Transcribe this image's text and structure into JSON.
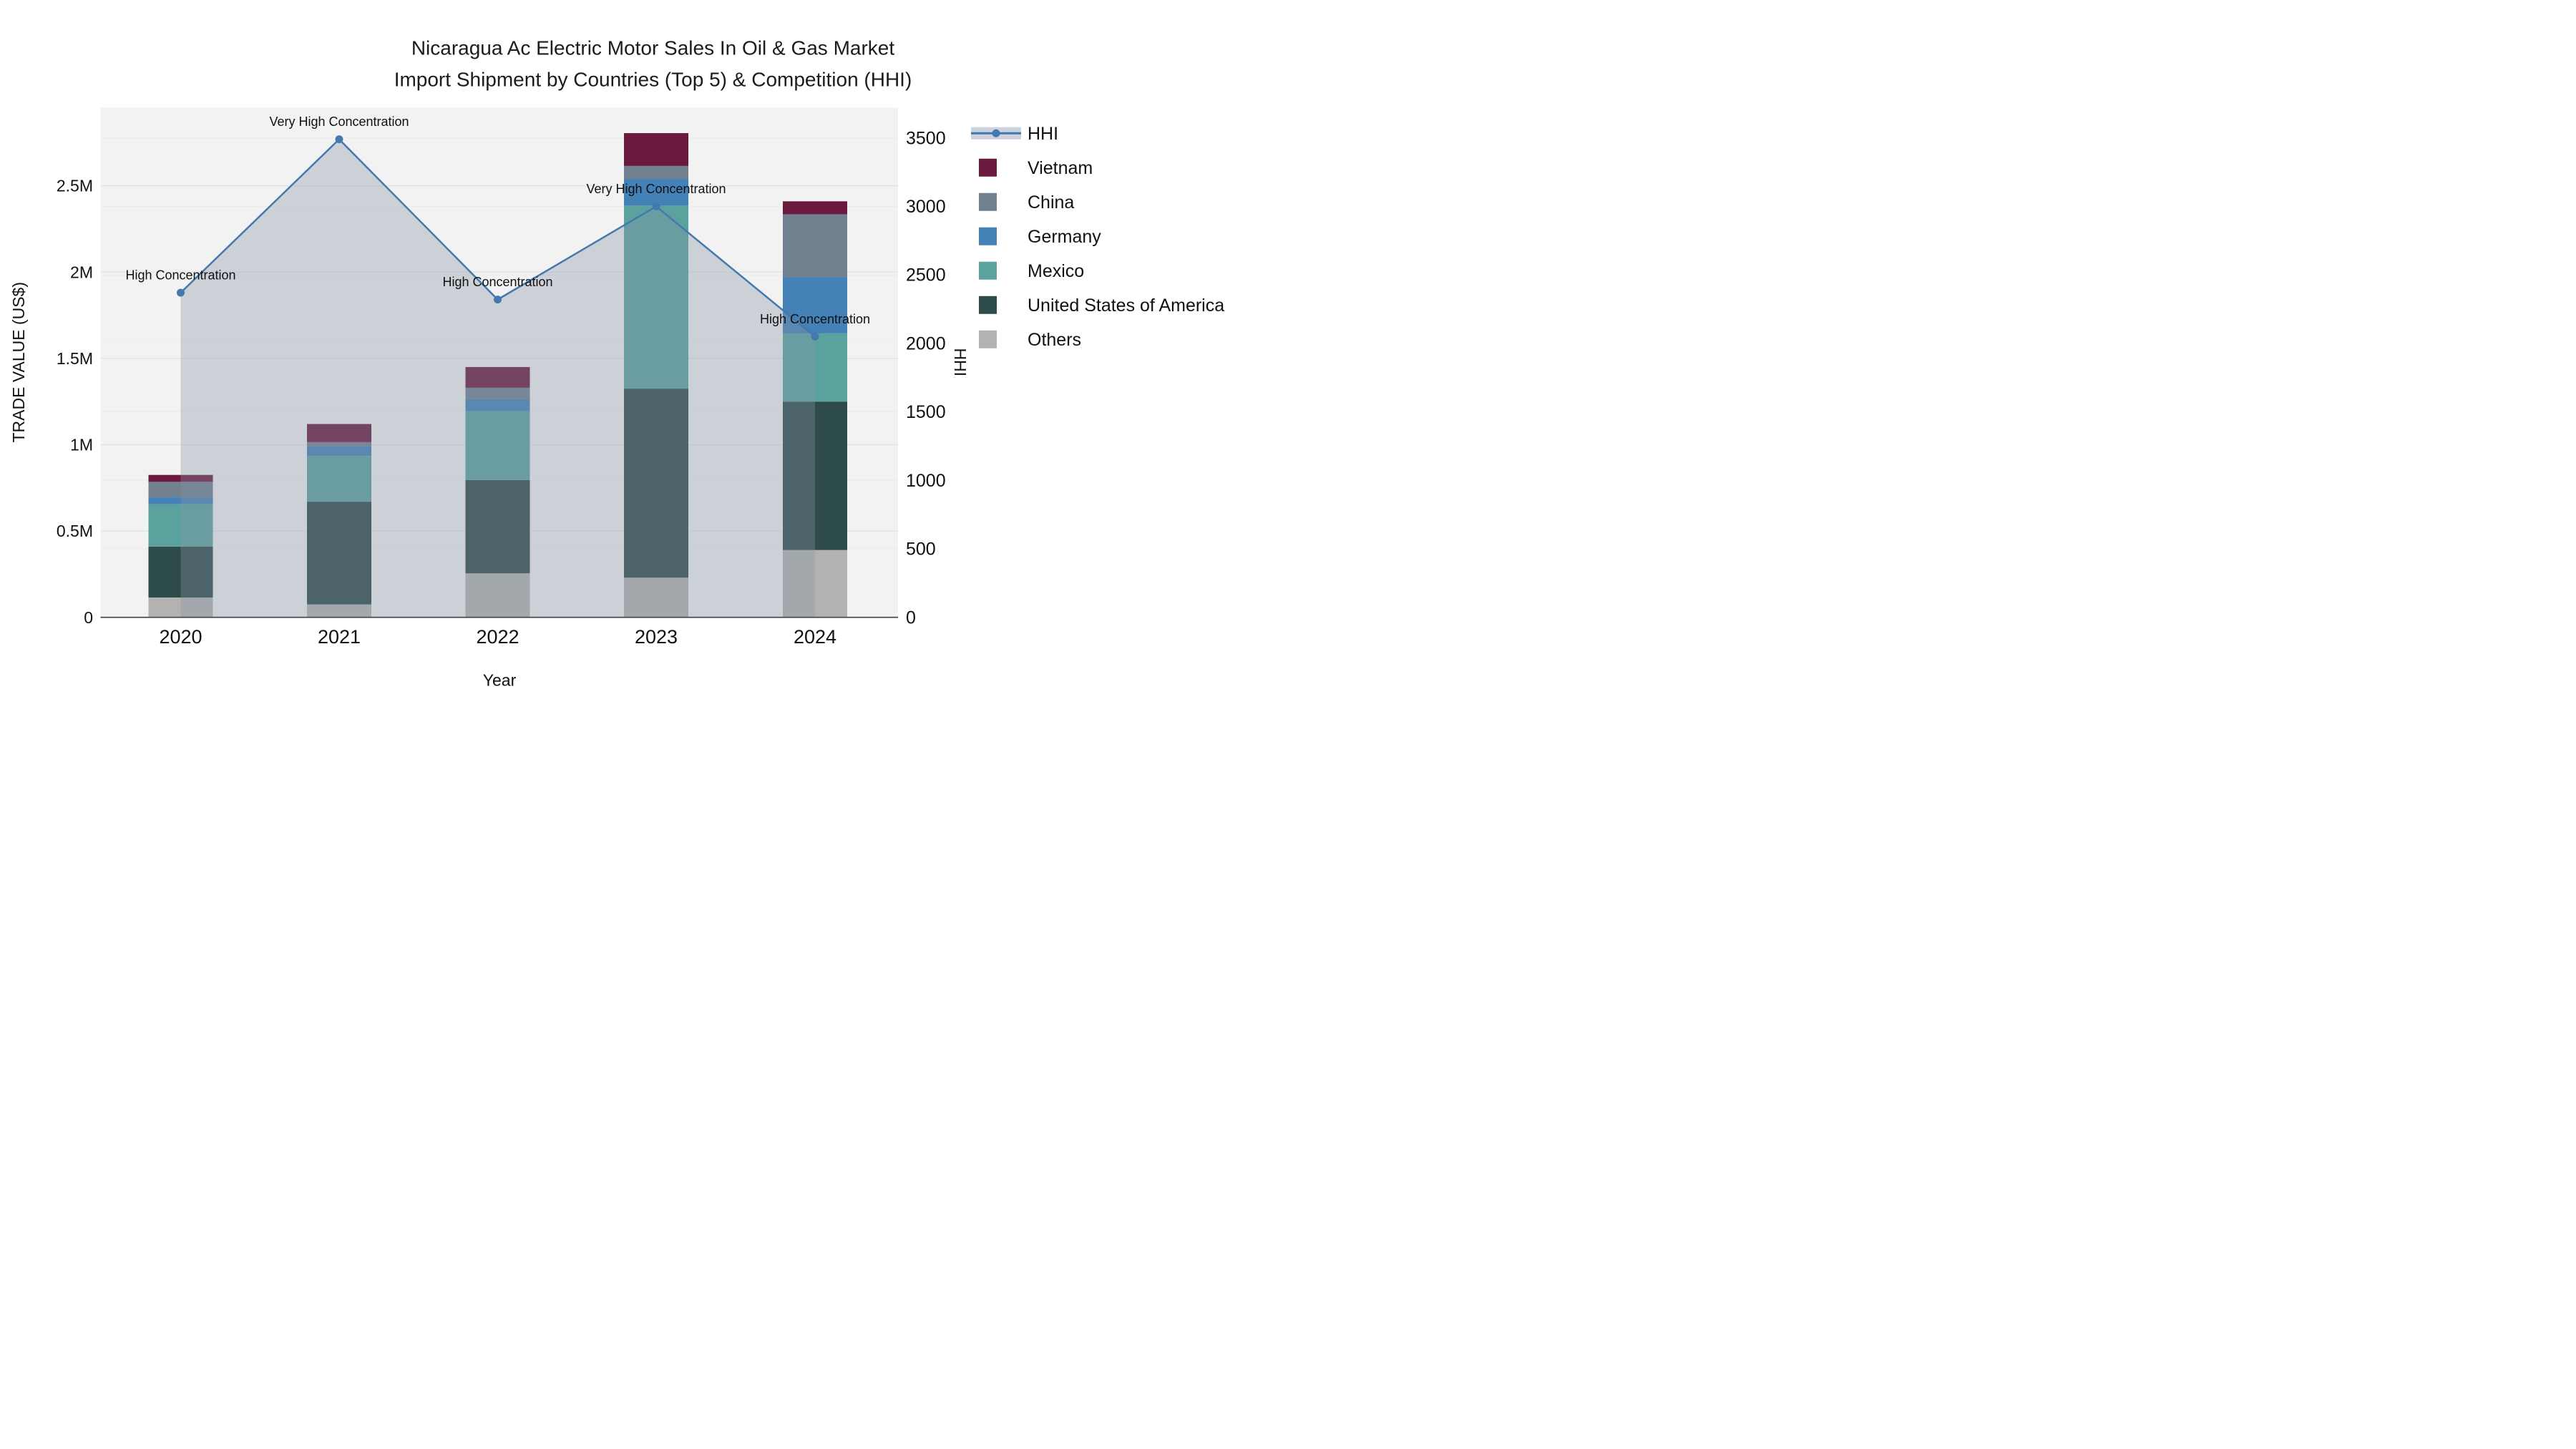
{
  "title": {
    "line1": "Nicaragua Ac Electric Motor Sales In Oil & Gas Market",
    "line2": "Import Shipment by Countries (Top 5) & Competition (HHI)"
  },
  "axes": {
    "left": {
      "title": "TRADE VALUE (US$)",
      "ticks": [
        {
          "label": "0",
          "m": 0
        },
        {
          "label": "0.5M",
          "m": 0.5
        },
        {
          "label": "1M",
          "m": 1
        },
        {
          "label": "1.5M",
          "m": 1.5
        },
        {
          "label": "2M",
          "m": 2
        },
        {
          "label": "2.5M",
          "m": 2.5
        }
      ]
    },
    "right": {
      "title": "HHI",
      "ticks": [
        {
          "label": "0",
          "hhi": 0
        },
        {
          "label": "500",
          "hhi": 500
        },
        {
          "label": "1000",
          "hhi": 1000
        },
        {
          "label": "1500",
          "hhi": 1500
        },
        {
          "label": "2000",
          "hhi": 2000
        },
        {
          "label": "2500",
          "hhi": 2500
        },
        {
          "label": "3000",
          "hhi": 3000
        },
        {
          "label": "3500",
          "hhi": 3500
        }
      ]
    },
    "x": {
      "title": "Year"
    }
  },
  "chart_data": {
    "type": "combo (stacked bar + line with area fill)",
    "categories": [
      "2020",
      "2021",
      "2022",
      "2023",
      "2024"
    ],
    "bar_unit": "US$ millions (left axis TRADE VALUE)",
    "stack_order_bottom_to_top": [
      "Others",
      "United States of America",
      "Mexico",
      "Germany",
      "China",
      "Vietnam"
    ],
    "series": [
      {
        "name": "Others",
        "color": "#b3b2b0",
        "values": [
          0.115,
          0.075,
          0.255,
          0.23,
          0.39
        ]
      },
      {
        "name": "United States of America",
        "color": "#2d4b48",
        "values": [
          0.295,
          0.595,
          0.54,
          1.095,
          0.86
        ]
      },
      {
        "name": "Mexico",
        "color": "#5ba29e",
        "values": [
          0.245,
          0.265,
          0.4,
          1.06,
          0.395
        ]
      },
      {
        "name": "Germany",
        "color": "#4381b6",
        "values": [
          0.04,
          0.055,
          0.07,
          0.155,
          0.325
        ]
      },
      {
        "name": "China",
        "color": "#71808f",
        "values": [
          0.09,
          0.025,
          0.065,
          0.075,
          0.365
        ]
      },
      {
        "name": "Vietnam",
        "color": "#6b1a3d",
        "values": [
          0.04,
          0.105,
          0.12,
          0.19,
          0.075
        ]
      }
    ],
    "bar_totals_musd": [
      0.825,
      1.12,
      1.45,
      2.805,
      2.41
    ],
    "line_series": {
      "name": "HHI",
      "axis": "right",
      "color": "#4579ad",
      "area_fill": "rgba(136,148,170,0.35)",
      "values": [
        2370,
        3490,
        2320,
        3000,
        2050
      ]
    },
    "annotations": [
      {
        "category": "2020",
        "text": "High Concentration"
      },
      {
        "category": "2021",
        "text": "Very High Concentration"
      },
      {
        "category": "2022",
        "text": "High Concentration"
      },
      {
        "category": "2023",
        "text": "Very High Concentration"
      },
      {
        "category": "2024",
        "text": "High Concentration"
      }
    ],
    "ylim_left_musd": [
      0,
      2.95
    ],
    "ylim_right_hhi": [
      0,
      3720
    ],
    "grid": "horizontal gridlines for both axes",
    "legend_position": "right"
  },
  "legend": {
    "items": [
      {
        "label": "HHI",
        "swatch": "line",
        "color": "#4579ad",
        "band": "#ccd3de"
      },
      {
        "label": "Vietnam",
        "swatch": "square",
        "color": "#6b1a3d"
      },
      {
        "label": "China",
        "swatch": "square",
        "color": "#71808f"
      },
      {
        "label": "Germany",
        "swatch": "square",
        "color": "#4381b6"
      },
      {
        "label": "Mexico",
        "swatch": "square",
        "color": "#5ba29e"
      },
      {
        "label": "United States of America",
        "swatch": "square",
        "color": "#2d4b48"
      },
      {
        "label": "Others",
        "swatch": "square",
        "color": "#b3b2b0"
      }
    ]
  },
  "colors": {
    "plot_background": "#f2f2f2",
    "figure_background": "#ffffff",
    "grid_major": "#e2e2e2",
    "grid_secondary": "#e9e9e9",
    "axis_line": "#4b4b4b",
    "text": "#111111",
    "title_text": "#1c1c1c"
  }
}
